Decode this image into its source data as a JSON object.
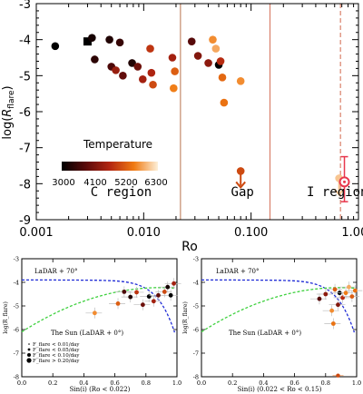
{
  "chart_data": [
    {
      "type": "scatter",
      "title": "",
      "xlabel": "Ro",
      "ylabel": "log(R_flare)",
      "ylabel_display": "log(",
      "ylabel_sym": "R",
      "ylabel_sub": "flare",
      "ylabel_close": ")",
      "xscale": "log",
      "xlim": [
        0.001,
        1.0
      ],
      "ylim": [
        -9,
        -3
      ],
      "xticks": [
        {
          "v": 0.001,
          "label": "0.001"
        },
        {
          "v": 0.01,
          "label": "0.010"
        },
        {
          "v": 0.1,
          "label": "0.100"
        },
        {
          "v": 1.0,
          "label": "1.000"
        }
      ],
      "yticks": [
        -9,
        -8,
        -7,
        -6,
        -5,
        -4,
        -3
      ],
      "vlines": [
        {
          "x": 0.022,
          "style": "solid",
          "color": "#c48a6a"
        },
        {
          "x": 0.15,
          "style": "solid",
          "color": "#d9806a"
        },
        {
          "x": 0.68,
          "style": "dashed",
          "color": "#d9806a"
        }
      ],
      "region_labels": [
        {
          "text": "C region",
          "x": 0.0032,
          "y": -8.35
        },
        {
          "text": "Gap",
          "x": 0.065,
          "y": -8.35
        },
        {
          "text": "I region",
          "x": 0.33,
          "y": -8.35
        }
      ],
      "colorbar": {
        "label": "Temperature",
        "ticks": [
          "3000",
          "4100",
          "5200",
          "6300"
        ],
        "range": [
          3000,
          6300
        ]
      },
      "points": [
        {
          "x": 0.0015,
          "y": -4.18,
          "t": 3000,
          "m": "circle"
        },
        {
          "x": 0.003,
          "y": -4.05,
          "t": 3000,
          "m": "square"
        },
        {
          "x": 0.0033,
          "y": -3.95,
          "t": 3200,
          "m": "circle"
        },
        {
          "x": 0.0048,
          "y": -4.0,
          "t": 3300,
          "m": "circle"
        },
        {
          "x": 0.006,
          "y": -4.08,
          "t": 3500,
          "m": "circle"
        },
        {
          "x": 0.0035,
          "y": -4.55,
          "t": 3400,
          "m": "circle"
        },
        {
          "x": 0.005,
          "y": -4.75,
          "t": 3700,
          "m": "circle"
        },
        {
          "x": 0.0055,
          "y": -4.85,
          "t": 4400,
          "m": "circle"
        },
        {
          "x": 0.0064,
          "y": -5.0,
          "t": 3900,
          "m": "circle"
        },
        {
          "x": 0.0078,
          "y": -4.65,
          "t": 3300,
          "m": "circle"
        },
        {
          "x": 0.0088,
          "y": -4.75,
          "t": 4000,
          "m": "circle"
        },
        {
          "x": 0.0098,
          "y": -5.1,
          "t": 4500,
          "m": "circle"
        },
        {
          "x": 0.0115,
          "y": -4.25,
          "t": 4800,
          "m": "circle"
        },
        {
          "x": 0.0118,
          "y": -4.92,
          "t": 4600,
          "m": "circle"
        },
        {
          "x": 0.0122,
          "y": -5.25,
          "t": 5000,
          "m": "circle"
        },
        {
          "x": 0.0185,
          "y": -4.5,
          "t": 4500,
          "m": "circle"
        },
        {
          "x": 0.0195,
          "y": -4.88,
          "t": 5200,
          "m": "circle"
        },
        {
          "x": 0.019,
          "y": -5.35,
          "t": 5500,
          "m": "circle"
        },
        {
          "x": 0.028,
          "y": -4.05,
          "t": 3800,
          "m": "circle"
        },
        {
          "x": 0.032,
          "y": -4.45,
          "t": 4200,
          "m": "circle"
        },
        {
          "x": 0.04,
          "y": -4.65,
          "t": 4300,
          "m": "circle"
        },
        {
          "x": 0.044,
          "y": -4.0,
          "t": 5600,
          "m": "circle"
        },
        {
          "x": 0.047,
          "y": -4.25,
          "t": 5800,
          "m": "circle"
        },
        {
          "x": 0.05,
          "y": -4.7,
          "t": 3000,
          "m": "circle"
        },
        {
          "x": 0.052,
          "y": -4.6,
          "t": 4700,
          "m": "circle"
        },
        {
          "x": 0.054,
          "y": -5.05,
          "t": 5300,
          "m": "circle"
        },
        {
          "x": 0.056,
          "y": -5.75,
          "t": 5400,
          "m": "circle"
        },
        {
          "x": 0.08,
          "y": -5.15,
          "t": 5600,
          "m": "circle"
        }
      ],
      "upper_limits": [
        {
          "x": 0.08,
          "y": -7.65,
          "t": 5000
        },
        {
          "x": 0.66,
          "y": -7.85,
          "t": 6000
        }
      ],
      "sun": {
        "x": 0.74,
        "y": -7.95,
        "yerr_hi": 0.7,
        "yerr_lo": 0.55,
        "xerr_lo": 0.05,
        "xerr_hi": 0.07
      }
    },
    {
      "type": "scatter",
      "xlabel": "Sin(i) (Ro < 0.022)",
      "ylabel": "log(R_flare)",
      "xlim": [
        0.0,
        1.0
      ],
      "ylim": [
        -8,
        -3
      ],
      "xticks": [
        "0.0",
        "0.2",
        "0.4",
        "0.6",
        "0.8",
        "1.0"
      ],
      "yticks": [
        "-3",
        "-4",
        "-5",
        "-6",
        "-7",
        "-8"
      ],
      "curve_labels": [
        "LaDAR + 70°",
        "The Sun (LaDAR + 0°)"
      ],
      "legend": [
        "F_flare < 0.01/day",
        "F_flare < 0.05/day",
        "F_flare < 0.10/day",
        "F_flare > 0.20/day"
      ],
      "points": [
        {
          "x": 0.47,
          "y": -5.3,
          "t": 5600
        },
        {
          "x": 0.62,
          "y": -4.9,
          "t": 5200
        },
        {
          "x": 0.66,
          "y": -4.4,
          "t": 3700
        },
        {
          "x": 0.7,
          "y": -4.62,
          "t": 3300
        },
        {
          "x": 0.74,
          "y": -4.42,
          "t": 4800
        },
        {
          "x": 0.78,
          "y": -4.95,
          "t": 4000
        },
        {
          "x": 0.82,
          "y": -4.6,
          "t": 3000
        },
        {
          "x": 0.85,
          "y": -4.8,
          "t": 4500
        },
        {
          "x": 0.88,
          "y": -4.55,
          "t": 3900
        },
        {
          "x": 0.92,
          "y": -4.4,
          "t": 5000
        },
        {
          "x": 0.94,
          "y": -4.2,
          "t": 3200
        },
        {
          "x": 0.96,
          "y": -4.55,
          "t": 3000
        },
        {
          "x": 0.98,
          "y": -4.05,
          "t": 4500
        }
      ]
    },
    {
      "type": "scatter",
      "xlabel": "Sin(i) (0.022 < Ro < 0.15)",
      "ylabel": "log(R_flare)",
      "xlim": [
        0.0,
        1.0
      ],
      "ylim": [
        -8,
        -3
      ],
      "xticks": [
        "0.0",
        "0.2",
        "0.4",
        "0.6",
        "0.8",
        "1.0"
      ],
      "yticks": [
        "-3",
        "-4",
        "-5",
        "-6",
        "-7",
        "-8"
      ],
      "curve_labels": [
        "LaDAR + 70°",
        "The Sun (LaDAR + 0°)"
      ],
      "points": [
        {
          "x": 0.76,
          "y": -4.7,
          "t": 3800
        },
        {
          "x": 0.8,
          "y": -4.5,
          "t": 4300
        },
        {
          "x": 0.84,
          "y": -5.2,
          "t": 5600
        },
        {
          "x": 0.86,
          "y": -4.3,
          "t": 5200
        },
        {
          "x": 0.88,
          "y": -4.95,
          "t": 4200
        },
        {
          "x": 0.89,
          "y": -4.45,
          "t": 3000
        },
        {
          "x": 0.91,
          "y": -4.65,
          "t": 4700
        },
        {
          "x": 0.93,
          "y": -4.45,
          "t": 5500
        },
        {
          "x": 0.95,
          "y": -4.2,
          "t": 5800
        },
        {
          "x": 0.97,
          "y": -4.6,
          "t": 5200
        },
        {
          "x": 0.99,
          "y": -4.35,
          "t": 5400
        },
        {
          "x": 0.85,
          "y": -5.75,
          "t": 5400
        }
      ],
      "upper_limits": [
        {
          "x": 0.88,
          "y": -7.95,
          "t": 5000
        }
      ]
    }
  ]
}
